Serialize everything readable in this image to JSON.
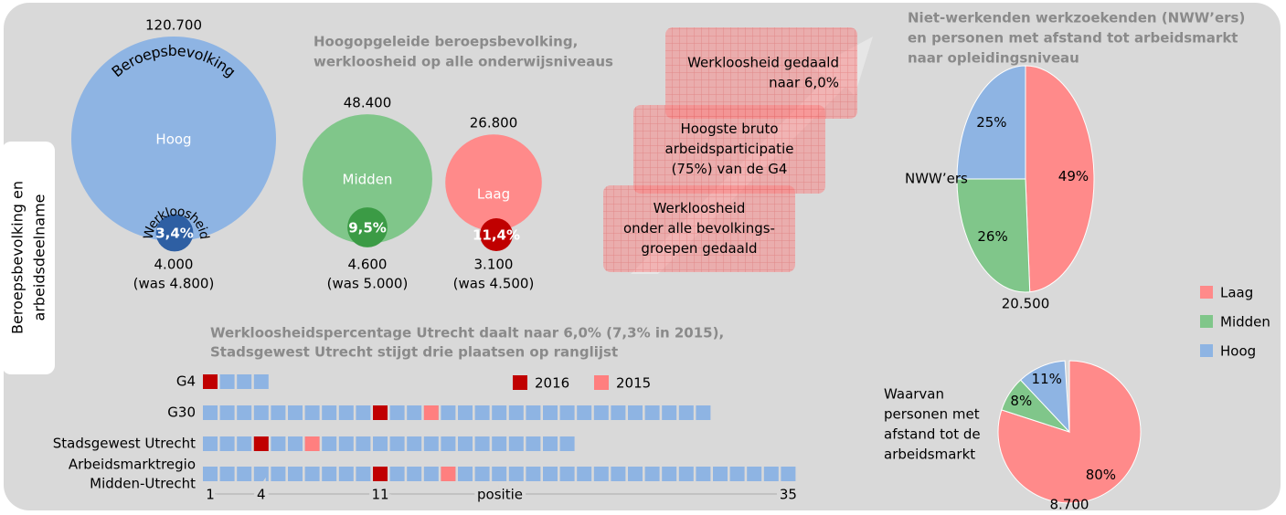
{
  "side_label": [
    "Beroepsbevolking en",
    "arbeidsdeelname"
  ],
  "callouts": [
    [
      "Werkloosheid gedaald",
      "naar 6,0%"
    ],
    [
      "Hoogste bruto",
      "arbeidsparticipatie",
      "(75%) van de G4"
    ],
    [
      "Werkloosheid",
      "onder alle bevolkings-",
      "groepen gedaald"
    ]
  ],
  "chart_data": [
    {
      "type": "bubble",
      "title": [
        "Hoogopgeleide beroepsbevolking,",
        "werkloosheid op alle onderwijsniveaus"
      ],
      "categories": [
        "Hoog",
        "Midden",
        "Laag"
      ],
      "series": [
        {
          "name": "Beroepsbevolking",
          "values": [
            120700,
            48400,
            26800
          ],
          "value_labels": [
            "120.700",
            "48.400",
            "26.800"
          ],
          "colors": [
            "#8eb4e3",
            "#80c68a",
            "#ff8a8a"
          ]
        },
        {
          "name": "Werkloosheid",
          "values": [
            3.4,
            9.5,
            11.4
          ],
          "value_labels": [
            "3,4%",
            "9,5%",
            "11,4%"
          ],
          "sizes": [
            4000,
            4600,
            3100
          ],
          "size_labels": [
            "4.000",
            "4.600",
            "3.100"
          ],
          "previous_sizes": [
            4800,
            5000,
            4500
          ],
          "previous_size_labels": [
            "(was 4.800)",
            "(was 5.000)",
            "(was 4.500)"
          ],
          "colors": [
            "#2e5fa3",
            "#3b9b45",
            "#c00000"
          ]
        }
      ]
    },
    {
      "type": "ranking",
      "title": [
        "Werkloosheidspercentage Utrecht daalt naar 6,0% (7,3% in 2015),",
        "Stadsgewest Utrecht stijgt drie plaatsen op ranglijst"
      ],
      "categories": [
        [
          "G4"
        ],
        [
          "G30"
        ],
        [
          "Stadsgewest Utrecht"
        ],
        [
          "Arbeidsmarktregio",
          "Midden-Utrecht"
        ]
      ],
      "counts": [
        4,
        30,
        22,
        35
      ],
      "color": "#8eb4e3",
      "series": [
        {
          "name": "2016",
          "color": "#c00000",
          "values": [
            1,
            11,
            4,
            11
          ]
        },
        {
          "name": "2015",
          "color": "#ff7f7f",
          "values": [
            null,
            14,
            7,
            15
          ]
        }
      ],
      "xlabel": "positie",
      "xlim": [
        1,
        35
      ],
      "xticks": [
        1,
        4,
        11,
        35
      ]
    },
    {
      "type": "pie",
      "title": [
        "Niet-werkenden werkzoekenden (NWW’ers)",
        "en personen met afstand tot arbeidsmarkt",
        "naar opleidingsniveau"
      ],
      "label": [
        "NWW’ers"
      ],
      "total": 20500,
      "total_label": "20.500",
      "categories": [
        "Laag",
        "Midden",
        "Hoog"
      ],
      "values": [
        49,
        26,
        25
      ],
      "value_labels": [
        "49%",
        "26%",
        "25%"
      ],
      "colors": [
        "#ff8a8a",
        "#80c68a",
        "#8eb4e3"
      ],
      "legend": "right"
    },
    {
      "type": "pie",
      "label": [
        "Waarvan",
        "personen met",
        "afstand tot de",
        "arbeidsmarkt"
      ],
      "total": 8700,
      "total_label": "8.700",
      "categories": [
        "Laag",
        "Midden",
        "Hoog"
      ],
      "values": [
        80,
        8,
        11
      ],
      "value_labels": [
        "80%",
        "8%",
        "11%"
      ],
      "colors": [
        "#ff8a8a",
        "#80c68a",
        "#8eb4e3"
      ]
    }
  ]
}
